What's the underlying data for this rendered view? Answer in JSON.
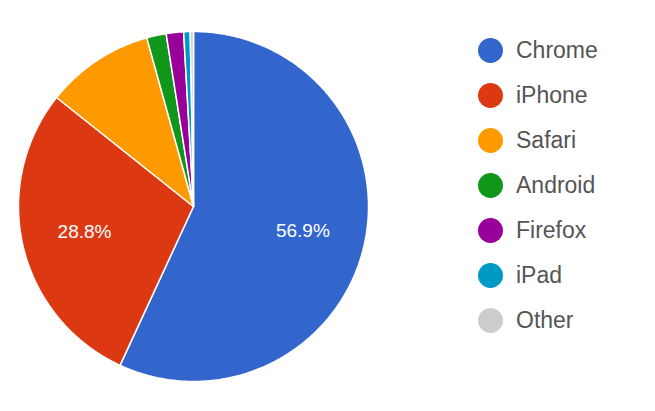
{
  "chart_data": {
    "type": "pie",
    "categories": [
      "Chrome",
      "iPhone",
      "Safari",
      "Android",
      "Firefox",
      "iPad",
      "Other"
    ],
    "values": [
      56.9,
      28.8,
      10.0,
      1.8,
      1.6,
      0.6,
      0.3
    ],
    "value_labels": [
      "56.9%",
      "28.8%",
      null,
      null,
      null,
      null,
      null
    ],
    "colors": [
      "#3366cc",
      "#dc3912",
      "#ff9900",
      "#109618",
      "#990099",
      "#0099c6",
      "#cccccc"
    ],
    "data_labels": true,
    "legend": "right"
  }
}
